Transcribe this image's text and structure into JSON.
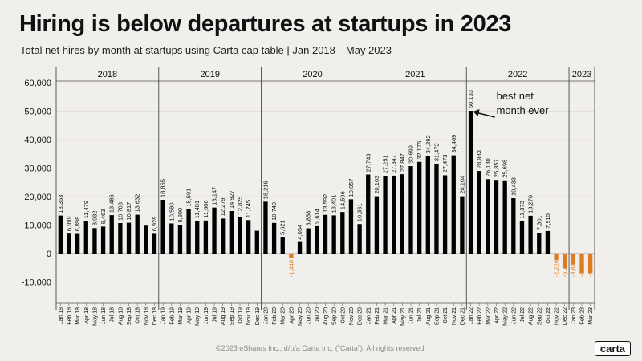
{
  "title": "Hiring is below departures at startups in 2023",
  "subtitle": "Total net hires by month at startups using Carta cap table  |  Jan 2018—May 2023",
  "footer": "©2023 eShares Inc., d/b/a Carta Inc. (“Carta”). All rights reserved.",
  "logo": "carta",
  "colors": {
    "positive": "#000000",
    "negative": "#e07a1f",
    "background": "#f1efec"
  },
  "chart_data": {
    "type": "bar",
    "title": "Hiring is below departures at startups in 2023",
    "ylabel": "Total net hires",
    "ylim": [
      -15000,
      62000
    ],
    "yticks": [
      -10000,
      0,
      10000,
      20000,
      30000,
      40000,
      50000,
      60000
    ],
    "ytick_labels": [
      "-10,000",
      "0",
      "10,000",
      "20,000",
      "30,000",
      "40,000",
      "50,000",
      "60,000"
    ],
    "year_labels": [
      "2018",
      "2019",
      "2020",
      "2021",
      "2022",
      "2023"
    ],
    "annotation": {
      "text_lines": [
        "best net",
        "month ever"
      ],
      "target": "Jan 22"
    },
    "categories": [
      "Jan 18",
      "Feb 18",
      "Mar 18",
      "Apr 18",
      "May 18",
      "Jun 18",
      "Jul 18",
      "Aug 18",
      "Sep 18",
      "Oct 18",
      "Nov 18",
      "Dec 18",
      "Jan 19",
      "Feb 19",
      "Mar 19",
      "Apr 19",
      "May 19",
      "Jun 19",
      "Jul 19",
      "Aug 19",
      "Sep 19",
      "Oct 19",
      "Nov 19",
      "Dec 19",
      "Jan 20",
      "Feb 20",
      "Mar 20",
      "Apr 20",
      "May 20",
      "Jun 20",
      "Jul 20",
      "Aug 20",
      "Sep 20",
      "Oct 20",
      "Nov 20",
      "Dec 20",
      "Jan 21",
      "Feb 21",
      "Mar 21",
      "Apr 21",
      "May 21",
      "Jun 21",
      "Jul 21",
      "Aug 21",
      "Sep 21",
      "Oct 21",
      "Nov 21",
      "Dec 21",
      "Jan 22",
      "Feb 22",
      "Mar 22",
      "Apr 22",
      "May 22",
      "Jun 22",
      "Jul 22",
      "Aug 22",
      "Sep 22",
      "Oct 22",
      "Nov 22",
      "Dec 22",
      "Jan 23",
      "Feb 23",
      "Mar 23"
    ],
    "values": [
      13353,
      6999,
      6898,
      11479,
      8932,
      9463,
      13486,
      10708,
      10817,
      13632,
      9800,
      6928,
      18865,
      10580,
      9990,
      15591,
      11481,
      11606,
      16147,
      12279,
      14927,
      12825,
      11745,
      8000,
      18216,
      10749,
      5621,
      -1448,
      4054,
      8858,
      9614,
      13592,
      13401,
      14596,
      19057,
      10361,
      27743,
      20103,
      27251,
      27347,
      27847,
      30699,
      32176,
      34292,
      31472,
      27473,
      34469,
      20104,
      50133,
      28983,
      26130,
      25857,
      25698,
      19433,
      11373,
      13276,
      7301,
      7915,
      -2226,
      -5120,
      -3640,
      -6880,
      -6850
    ],
    "data_labels": [
      "13,353",
      "6,999",
      "6,898",
      "11,479",
      "8,932",
      "9,463",
      "13,486",
      "10,708",
      "10,817",
      "13,632",
      "",
      "6,928",
      "18,865",
      "10,580",
      "9,990",
      "15,591",
      "11,481",
      "11,606",
      "16,147",
      "12,279",
      "14,927",
      "12,825",
      "11,745",
      "",
      "18,216",
      "10,749",
      "5,621",
      "-1,448",
      "4,054",
      "8,858",
      "9,614",
      "13,592",
      "13,401",
      "14,596",
      "19,057",
      "10,361",
      "27,743",
      "20,103",
      "27,251",
      "27,347",
      "27,847",
      "30,699",
      "32,176",
      "34,292",
      "31,472",
      "27,473",
      "34,469",
      "20,104",
      "50,133",
      "28,983",
      "26,130",
      "25,857",
      "25,698",
      "19,433",
      "11,373",
      "13,276",
      "7,301",
      "7,915",
      "-2,226",
      "-5,120",
      "-3,640",
      "-6,880",
      "-6,850"
    ]
  }
}
